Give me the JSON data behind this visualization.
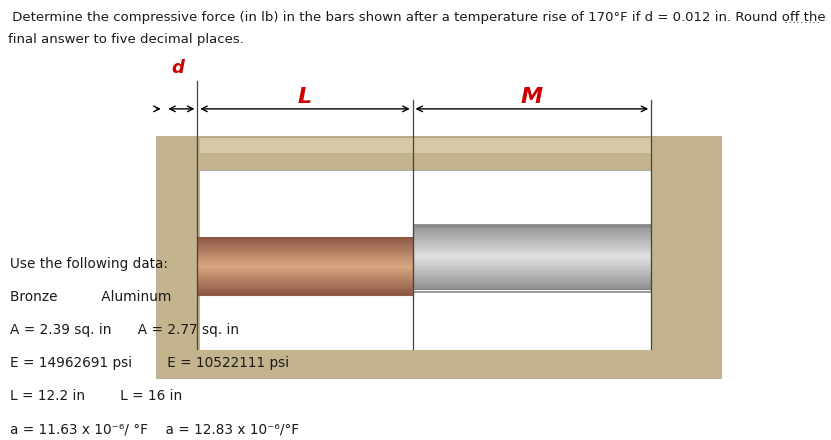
{
  "title_line1": " Determine the compressive force (in lb) in the bars shown after a temperature rise of 170°F if d = 0.012 in. Round off the",
  "title_line2": "final answer to five decimal places.",
  "title_fontsize": 9.5,
  "title_color": "#1a1a1a",
  "bg_color": "#ffffff",
  "panel_bg": "#f0f0f0",
  "dots_color": "#555555",
  "label_color": "#cc0000",
  "label_fontsize": 13,
  "wall_color": "#d6c9a8",
  "wall_dark": "#c4b48e",
  "inner_bg": "#ffffff",
  "bronze_light": "#d8a882",
  "bronze_dark": "#b07848",
  "aluminum_light": "#e0e0e0",
  "aluminum_dark": "#a8a8a8",
  "data_fontsize": 9.8,
  "data_color": "#1a1a1a",
  "data_lines": [
    "Use the following data:",
    "Bronze          Aluminum",
    "A = 2.39 sq. in      A = 2.77 sq. in",
    "E = 14962691 psi        E = 10522111 psi",
    "L = 12.2 in        L = 16 in",
    "a = 11.63 x 10⁻⁶/ °F    a = 12.83 x 10⁻⁶/°F"
  ]
}
